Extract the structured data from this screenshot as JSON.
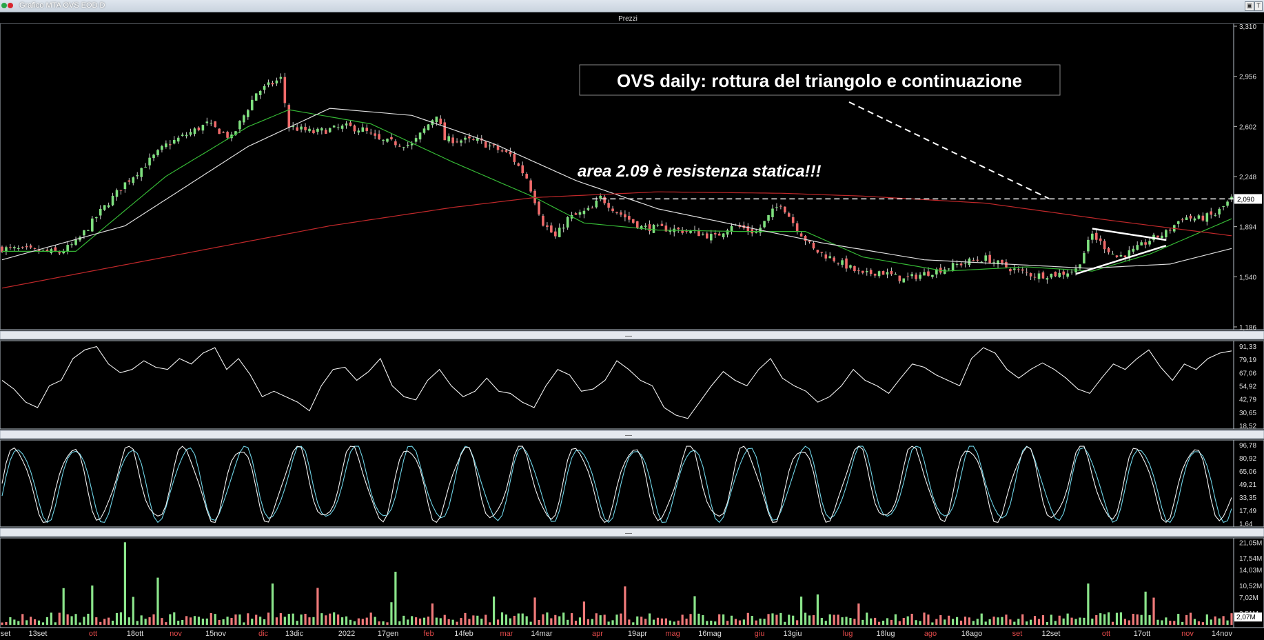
{
  "window": {
    "title": "Grafico MTA OVS EOD D",
    "corner_label": "T"
  },
  "panels": {
    "price_title": "Prezzi",
    "separator_glyph": "—"
  },
  "annotations": {
    "headline": "OVS daily: rottura del triangolo e continuazione",
    "resistance_note": "area 2.09 è resistenza statica!!!"
  },
  "chart_data": [
    {
      "type": "line",
      "name": "price",
      "title": "Prezzi",
      "y_axis_ticks": [
        "3,310",
        "2,956",
        "2,602",
        "2,248",
        "1,894",
        "1,540",
        "1,186"
      ],
      "ylim": [
        1.186,
        3.31
      ],
      "last_price_label": "2,090",
      "resistance_level": 2.09,
      "x_tick_labels": [
        "set",
        "13set",
        "ott",
        "18ott",
        "nov",
        "15nov",
        "dic",
        "13dic",
        "2022",
        "17gen",
        "feb",
        "14feb",
        "mar",
        "14mar",
        "apr",
        "19apr",
        "mag",
        "16mag",
        "giu",
        "13giu",
        "lug",
        "18lug",
        "ago",
        "16ago",
        "set",
        "12set",
        "ott",
        "17ott",
        "nov",
        "14nov"
      ],
      "x_tick_red": [
        false,
        false,
        true,
        false,
        true,
        false,
        true,
        false,
        false,
        false,
        true,
        false,
        true,
        false,
        true,
        false,
        true,
        false,
        true,
        false,
        true,
        false,
        true,
        false,
        true,
        false,
        true,
        false,
        true,
        false
      ],
      "close_keypoints": [
        [
          0,
          1.74
        ],
        [
          10,
          1.72
        ],
        [
          14,
          1.71
        ],
        [
          18,
          1.78
        ],
        [
          24,
          2.0
        ],
        [
          30,
          2.2
        ],
        [
          40,
          2.47
        ],
        [
          50,
          2.62
        ],
        [
          56,
          2.52
        ],
        [
          62,
          2.84
        ],
        [
          68,
          2.94
        ],
        [
          70,
          2.6
        ],
        [
          76,
          2.56
        ],
        [
          84,
          2.6
        ],
        [
          88,
          2.58
        ],
        [
          92,
          2.5
        ],
        [
          100,
          2.47
        ],
        [
          106,
          2.69
        ],
        [
          108,
          2.51
        ],
        [
          116,
          2.5
        ],
        [
          124,
          2.4
        ],
        [
          128,
          2.24
        ],
        [
          132,
          1.92
        ],
        [
          135,
          1.82
        ],
        [
          138,
          1.95
        ],
        [
          144,
          2.02
        ],
        [
          146,
          2.1
        ],
        [
          150,
          2.0
        ],
        [
          156,
          1.89
        ],
        [
          162,
          1.88
        ],
        [
          168,
          1.86
        ],
        [
          174,
          1.82
        ],
        [
          178,
          1.91
        ],
        [
          184,
          1.85
        ],
        [
          188,
          2.0
        ],
        [
          190,
          2.06
        ],
        [
          194,
          1.88
        ],
        [
          198,
          1.73
        ],
        [
          204,
          1.65
        ],
        [
          210,
          1.55
        ],
        [
          214,
          1.58
        ],
        [
          220,
          1.52
        ],
        [
          226,
          1.57
        ],
        [
          230,
          1.6
        ],
        [
          236,
          1.65
        ],
        [
          240,
          1.67
        ],
        [
          244,
          1.62
        ],
        [
          248,
          1.58
        ],
        [
          252,
          1.55
        ],
        [
          258,
          1.56
        ],
        [
          262,
          1.59
        ],
        [
          266,
          1.84
        ],
        [
          268,
          1.78
        ],
        [
          272,
          1.68
        ],
        [
          276,
          1.72
        ],
        [
          280,
          1.8
        ],
        [
          284,
          1.85
        ],
        [
          288,
          1.96
        ],
        [
          292,
          1.95
        ],
        [
          296,
          1.98
        ],
        [
          300,
          2.09
        ]
      ],
      "moving_averages": [
        {
          "color": "#35b735",
          "keypoints": [
            [
              0,
              1.72
            ],
            [
              18,
              1.72
            ],
            [
              40,
              2.25
            ],
            [
              60,
              2.6
            ],
            [
              70,
              2.72
            ],
            [
              90,
              2.62
            ],
            [
              110,
              2.35
            ],
            [
              130,
              2.1
            ],
            [
              142,
              1.92
            ],
            [
              160,
              1.87
            ],
            [
              180,
              1.86
            ],
            [
              196,
              1.86
            ],
            [
              210,
              1.68
            ],
            [
              230,
              1.58
            ],
            [
              250,
              1.61
            ],
            [
              266,
              1.58
            ],
            [
              280,
              1.7
            ],
            [
              300,
              1.95
            ]
          ]
        },
        {
          "color": "#dddddd",
          "keypoints": [
            [
              0,
              1.66
            ],
            [
              30,
              1.9
            ],
            [
              60,
              2.46
            ],
            [
              80,
              2.73
            ],
            [
              100,
              2.68
            ],
            [
              120,
              2.48
            ],
            [
              140,
              2.22
            ],
            [
              160,
              2.02
            ],
            [
              180,
              1.9
            ],
            [
              200,
              1.78
            ],
            [
              225,
              1.66
            ],
            [
              245,
              1.63
            ],
            [
              265,
              1.6
            ],
            [
              285,
              1.63
            ],
            [
              300,
              1.74
            ]
          ]
        },
        {
          "color": "#c0282a",
          "keypoints": [
            [
              0,
              1.46
            ],
            [
              40,
              1.68
            ],
            [
              80,
              1.9
            ],
            [
              110,
              2.03
            ],
            [
              130,
              2.1
            ],
            [
              160,
              2.14
            ],
            [
              190,
              2.13
            ],
            [
              210,
              2.11
            ],
            [
              240,
              2.06
            ],
            [
              270,
              1.94
            ],
            [
              300,
              1.83
            ]
          ]
        }
      ]
    },
    {
      "type": "line",
      "name": "oscillator",
      "y_axis_ticks": [
        "91,33",
        "79,19",
        "67,06",
        "54,92",
        "42,79",
        "30,65",
        "18,52"
      ],
      "ylim": [
        18.52,
        91.33
      ],
      "values": [
        60,
        52,
        40,
        35,
        55,
        60,
        80,
        88,
        91,
        75,
        67,
        70,
        78,
        72,
        70,
        80,
        75,
        85,
        90,
        70,
        80,
        65,
        45,
        50,
        45,
        40,
        32,
        55,
        70,
        72,
        60,
        68,
        80,
        55,
        45,
        42,
        60,
        70,
        55,
        45,
        50,
        62,
        50,
        48,
        40,
        35,
        55,
        70,
        65,
        50,
        52,
        60,
        78,
        70,
        60,
        55,
        35,
        28,
        25,
        40,
        55,
        68,
        60,
        55,
        70,
        80,
        62,
        55,
        50,
        40,
        45,
        55,
        70,
        60,
        55,
        48,
        62,
        75,
        72,
        65,
        60,
        55,
        80,
        90,
        85,
        70,
        62,
        70,
        76,
        70,
        62,
        52,
        48,
        62,
        75,
        70,
        80,
        88,
        72,
        60,
        75,
        70,
        80,
        85,
        87
      ]
    },
    {
      "type": "line",
      "name": "stochastic",
      "y_axis_ticks": [
        "96,78",
        "80,92",
        "65,06",
        "49,21",
        "33,35",
        "17,49",
        "1,64"
      ],
      "ylim": [
        1.64,
        96.78
      ]
    },
    {
      "type": "bar",
      "name": "volume",
      "y_axis_ticks": [
        "21,05M",
        "17,54M",
        "14,03M",
        "10,52M",
        "7,02M",
        "3,51M"
      ],
      "last_volume_label": "2,07M",
      "ylim": [
        0,
        21.05
      ]
    }
  ]
}
